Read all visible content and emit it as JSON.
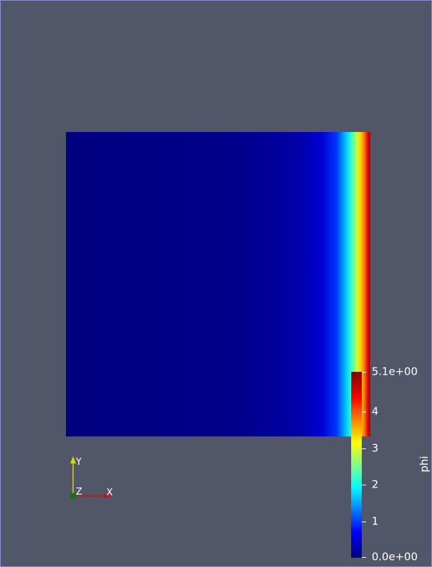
{
  "colorbar": {
    "title": "phi",
    "ticks": [
      {
        "label": "5.1e+00",
        "value": 5.1
      },
      {
        "label": "4",
        "value": 4
      },
      {
        "label": "3",
        "value": 3
      },
      {
        "label": "2",
        "value": 2
      },
      {
        "label": "1",
        "value": 1
      },
      {
        "label": "0.0e+00",
        "value": 0
      }
    ],
    "range": [
      0,
      5.1
    ],
    "colormap": [
      "#800000",
      "#ff0000",
      "#ff8000",
      "#ffff00",
      "#80ff80",
      "#00ffff",
      "#0080ff",
      "#0000ff",
      "#000080"
    ]
  },
  "orientation_axes": {
    "x_label": "X",
    "y_label": "Y",
    "z_label": "Z",
    "x_color": "#d01010",
    "y_color": "#d8d800",
    "z_color": "#0a7a0a"
  },
  "colors": {
    "background": "#525669"
  }
}
